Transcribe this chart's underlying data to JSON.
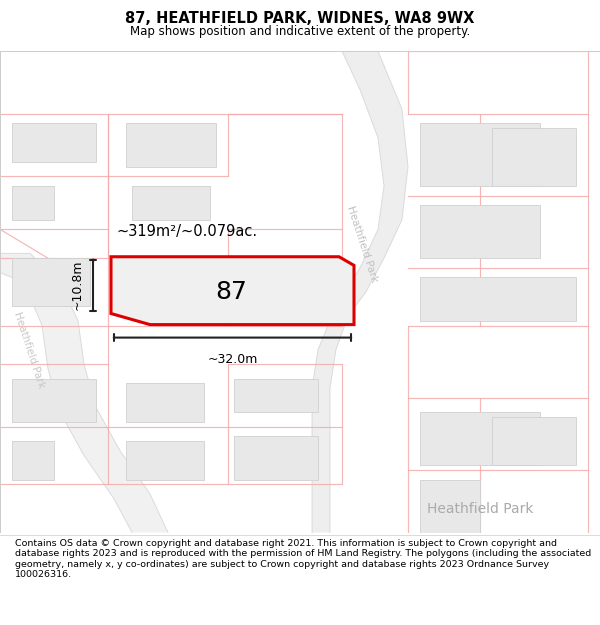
{
  "title": "87, HEATHFIELD PARK, WIDNES, WA8 9WX",
  "subtitle": "Map shows position and indicative extent of the property.",
  "footer": "Contains OS data © Crown copyright and database right 2021. This information is subject to Crown copyright and database rights 2023 and is reproduced with the permission of HM Land Registry. The polygons (including the associated geometry, namely x, y co-ordinates) are subject to Crown copyright and database rights 2023 Ordnance Survey 100026316.",
  "map_bg": "#ffffff",
  "road_fill": "#f0f0f0",
  "road_line": "#f5aaaa",
  "building_fill": "#e8e8e8",
  "building_outline": "#d0d0d0",
  "highlight_fill": "#f0f0f0",
  "highlight_outline": "#dd0000",
  "highlight_lw": 2.2,
  "dim_color": "#222222",
  "area_text": "~319m²/~0.079ac.",
  "dim_width": "~32.0m",
  "dim_height": "~10.8m",
  "num_label": "87",
  "street_name_right": "Heathfield Park",
  "street_name_left": "Heathfield Park",
  "street_name_bottom": "Heathfield Park",
  "road_gray": "#c8c8c8",
  "road_gray_fill": "#e8e8e8"
}
